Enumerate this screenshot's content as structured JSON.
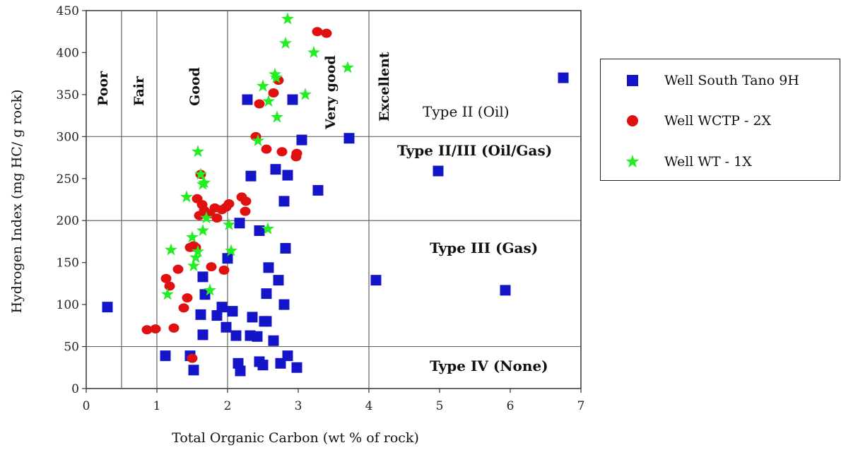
{
  "chart_data": {
    "type": "scatter",
    "xlabel": "Total Organic Carbon (wt % of rock)",
    "ylabel": "Hydrogen Index (mg HC/ g rock)",
    "xlim": [
      0,
      7
    ],
    "ylim": [
      0,
      450
    ],
    "x_ticks": [
      "0",
      "1",
      "2",
      "3",
      "4",
      "5",
      "6",
      "7"
    ],
    "y_ticks": [
      "0",
      "50",
      "100",
      "150",
      "200",
      "250",
      "300",
      "350",
      "400",
      "450"
    ],
    "grid": false,
    "legend_position": "right",
    "vertical_dividers": [
      0.5,
      1,
      2,
      4
    ],
    "horizontal_dividers": [
      50,
      200,
      300
    ],
    "region_labels": [
      "Poor",
      "Fair",
      "Good",
      "Very good",
      "Excellent"
    ],
    "type_labels": [
      "Type II (Oil)",
      "Type II/III (Oil/Gas)",
      "Type III (Gas)",
      "Type IV (None)"
    ],
    "series": [
      {
        "name": "Well South Tano 9H",
        "marker": "square",
        "color": "#1414c8",
        "x": [
          0.3,
          2.28,
          2.33,
          2.17,
          2.45,
          2.85,
          2.68,
          2.8,
          2.82,
          3.05,
          2.92,
          3.72,
          3.28,
          4.98,
          6.75,
          4.1,
          5.93,
          2.58,
          1.68,
          1.65,
          2.0,
          1.62,
          1.92,
          1.98,
          2.07,
          2.35,
          2.55,
          2.72,
          2.52,
          2.8,
          1.65,
          1.85,
          2.12,
          2.42,
          2.65,
          2.55,
          2.32,
          1.12,
          1.47,
          1.52,
          2.15,
          2.18,
          2.5,
          2.45,
          2.75,
          2.85,
          2.98
        ],
        "y": [
          97,
          344,
          253,
          197,
          188,
          254,
          261,
          223,
          167,
          296,
          344,
          298,
          236,
          259,
          370,
          129,
          117,
          144,
          112,
          133,
          155,
          88,
          97,
          73,
          92,
          85,
          113,
          129,
          80,
          100,
          64,
          87,
          63,
          62,
          57,
          80,
          63,
          39,
          39,
          22,
          30,
          21,
          28,
          32,
          30,
          39,
          25
        ]
      },
      {
        "name": "Well WCTP - 2X",
        "marker": "circle",
        "color": "#e01010",
        "x": [
          0.86,
          0.98,
          1.24,
          1.3,
          1.38,
          1.43,
          1.13,
          1.18,
          1.47,
          1.52,
          1.55,
          1.57,
          1.62,
          1.64,
          1.6,
          1.67,
          1.75,
          1.82,
          1.85,
          1.92,
          1.98,
          2.02,
          2.2,
          2.26,
          2.25,
          1.77,
          1.95,
          2.4,
          2.45,
          2.55,
          2.65,
          2.72,
          2.77,
          2.97,
          2.98,
          3.27,
          3.4,
          1.5
        ],
        "y": [
          70,
          71,
          72,
          142,
          96,
          108,
          131,
          122,
          168,
          170,
          168,
          226,
          255,
          219,
          206,
          212,
          208,
          215,
          203,
          213,
          216,
          220,
          228,
          223,
          211,
          145,
          141,
          300,
          339,
          285,
          352,
          367,
          282,
          276,
          280,
          425,
          423,
          36
        ]
      },
      {
        "name": "Well  WT - 1X",
        "marker": "star",
        "color": "#22ee22",
        "x": [
          1.58,
          1.62,
          1.65,
          1.67,
          1.42,
          1.5,
          1.2,
          1.58,
          1.55,
          1.52,
          1.65,
          1.7,
          2.02,
          2.05,
          1.15,
          1.75,
          2.43,
          2.5,
          2.58,
          2.67,
          2.69,
          2.7,
          2.82,
          2.85,
          3.1,
          3.22,
          3.7,
          2.57
        ],
        "y": [
          282,
          255,
          243,
          245,
          228,
          180,
          165,
          163,
          156,
          146,
          188,
          203,
          195,
          164,
          112,
          117,
          295,
          360,
          342,
          374,
          370,
          323,
          411,
          440,
          350,
          400,
          382,
          190
        ]
      }
    ]
  }
}
